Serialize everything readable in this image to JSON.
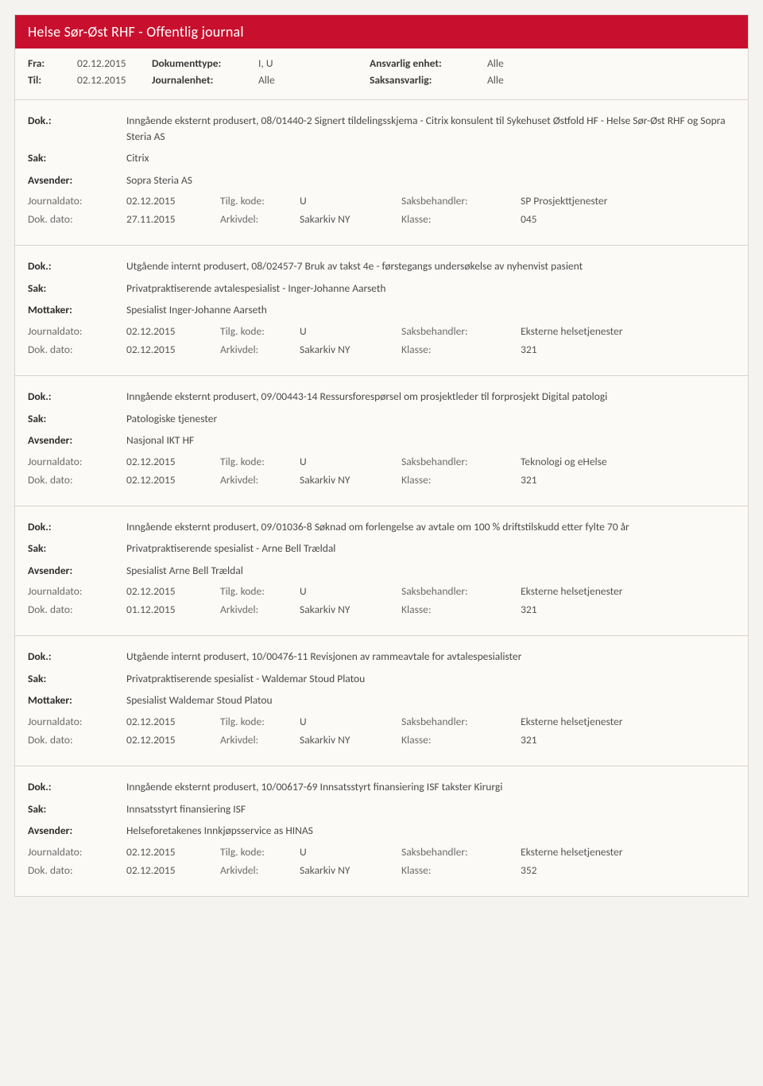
{
  "banner": "Helse Sør-Øst RHF - Offentlig journal",
  "filters": {
    "labels": {
      "fra": "Fra:",
      "til": "Til:",
      "dokumenttype": "Dokumenttype:",
      "journalenhet": "Journalenhet:",
      "ansvarlig_enhet": "Ansvarlig enhet:",
      "saksansvarlig": "Saksansvarlig:"
    },
    "fra": "02.12.2015",
    "til": "02.12.2015",
    "dokumenttype": "I, U",
    "journalenhet": "Alle",
    "ansvarlig_enhet": "Alle",
    "saksansvarlig": "Alle"
  },
  "field_labels": {
    "dok": "Dok.:",
    "sak": "Sak:",
    "avsender": "Avsender:",
    "mottaker": "Mottaker:",
    "journaldato": "Journaldato:",
    "tilgkode": "Tilg. kode:",
    "saksbehandler": "Saksbehandler:",
    "dokdato": "Dok. dato:",
    "arkivdel": "Arkivdel:",
    "klasse": "Klasse:"
  },
  "entries": [
    {
      "dok": "Inngående eksternt produsert, 08/01440-2 Signert tildelingsskjema - Citrix konsulent til Sykehuset Østfold HF - Helse Sør-Øst RHF og Sopra Steria AS",
      "sak": "Citrix",
      "party_label_key": "avsender",
      "party_value": "Sopra Steria AS",
      "journaldato": "02.12.2015",
      "tilgkode": "U",
      "saksbehandler": "SP Prosjekttjenester",
      "dokdato": "27.11.2015",
      "arkivdel": "Sakarkiv NY",
      "klasse": "045"
    },
    {
      "dok": "Utgående internt produsert, 08/02457-7 Bruk av takst 4e - førstegangs undersøkelse av nyhenvist pasient",
      "sak": "Privatpraktiserende avtalespesialist - Inger-Johanne Aarseth",
      "party_label_key": "mottaker",
      "party_value": "Spesialist Inger-Johanne Aarseth",
      "journaldato": "02.12.2015",
      "tilgkode": "U",
      "saksbehandler": "Eksterne helsetjenester",
      "dokdato": "02.12.2015",
      "arkivdel": "Sakarkiv NY",
      "klasse": "321"
    },
    {
      "dok": "Inngående eksternt produsert, 09/00443-14 Ressursforespørsel om prosjektleder til forprosjekt Digital patologi",
      "sak": "Patologiske tjenester",
      "party_label_key": "avsender",
      "party_value": "Nasjonal IKT HF",
      "journaldato": "02.12.2015",
      "tilgkode": "U",
      "saksbehandler": "Teknologi og eHelse",
      "dokdato": "02.12.2015",
      "arkivdel": "Sakarkiv NY",
      "klasse": "321"
    },
    {
      "dok": "Inngående eksternt produsert, 09/01036-8 Søknad om forlengelse av avtale om 100 % driftstilskudd etter fylte 70 år",
      "sak": "Privatpraktiserende spesialist - Arne Bell Trældal",
      "party_label_key": "avsender",
      "party_value": "Spesialist Arne Bell Trældal",
      "journaldato": "02.12.2015",
      "tilgkode": "U",
      "saksbehandler": "Eksterne helsetjenester",
      "dokdato": "01.12.2015",
      "arkivdel": "Sakarkiv NY",
      "klasse": "321"
    },
    {
      "dok": "Utgående internt produsert, 10/00476-11 Revisjonen av rammeavtale for avtalespesialister",
      "sak": "Privatpraktiserende spesialist - Waldemar Stoud Platou",
      "party_label_key": "mottaker",
      "party_value": "Spesialist Waldemar Stoud Platou",
      "journaldato": "02.12.2015",
      "tilgkode": "U",
      "saksbehandler": "Eksterne helsetjenester",
      "dokdato": "02.12.2015",
      "arkivdel": "Sakarkiv NY",
      "klasse": "321"
    },
    {
      "dok": "Inngående eksternt produsert, 10/00617-69 Innsatsstyrt finansiering ISF takster Kirurgi",
      "sak": "Innsatsstyrt finansiering ISF",
      "party_label_key": "avsender",
      "party_value": "Helseforetakenes Innkjøpsservice as HINAS",
      "journaldato": "02.12.2015",
      "tilgkode": "U",
      "saksbehandler": "Eksterne helsetjenester",
      "dokdato": "02.12.2015",
      "arkivdel": "Sakarkiv NY",
      "klasse": "352"
    }
  ],
  "colors": {
    "banner_bg": "#c8102e",
    "banner_text": "#ffffff",
    "page_bg": "#fcfaf7",
    "border": "#d8d4ce",
    "label_text": "#3a3a3a",
    "value_text": "#4a4a4a",
    "muted_text": "#6b6b6b"
  }
}
